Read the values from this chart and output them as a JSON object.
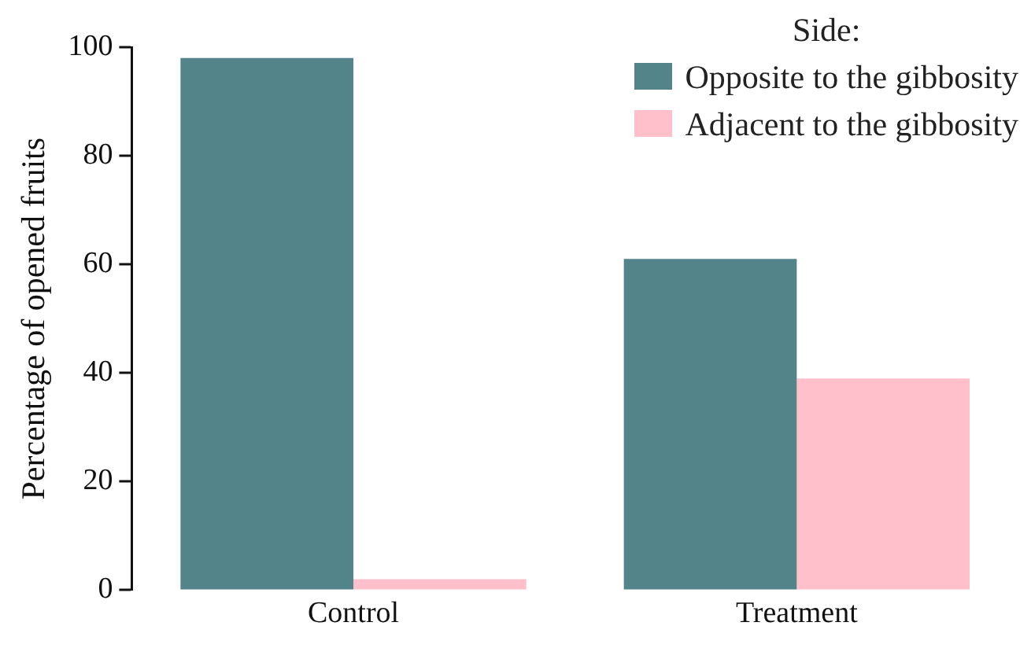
{
  "chart_data": {
    "type": "bar",
    "ylabel": "Percentage of opened fruits",
    "legend_title": "Side:",
    "categories": [
      "Control",
      "Treatment"
    ],
    "series": [
      {
        "name": "Opposite to the gibbosity",
        "color": "#528489",
        "values": [
          98,
          61
        ]
      },
      {
        "name": "Adjacent to the gibbosity",
        "color": "#ffc0cb",
        "values": [
          2,
          39
        ]
      }
    ],
    "ylim": [
      0,
      100
    ],
    "yticks": [
      0,
      20,
      40,
      60,
      80,
      100
    ],
    "grid": false,
    "legend": "top right"
  }
}
